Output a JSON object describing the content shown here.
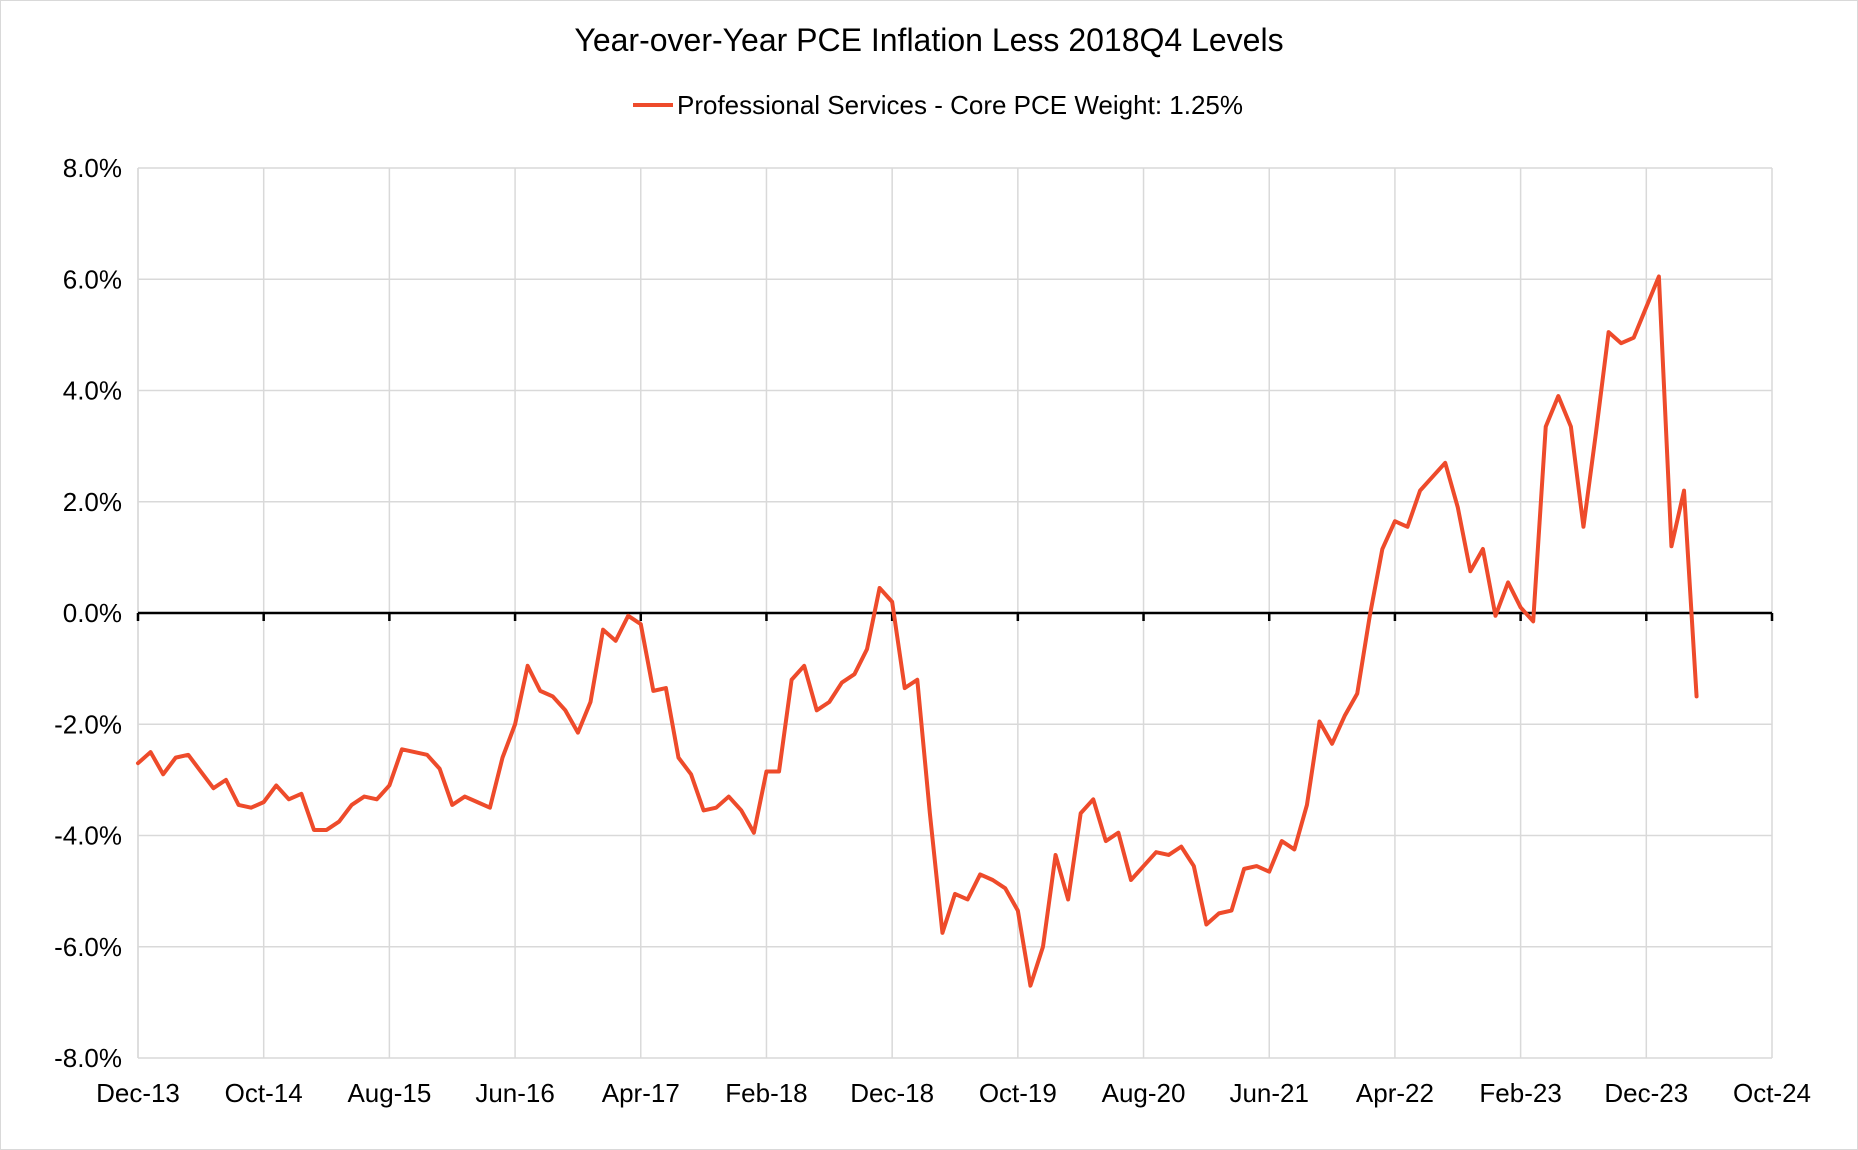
{
  "chart_data": {
    "type": "line",
    "title": "Year-over-Year PCE Inflation Less 2018Q4 Levels",
    "xlabel": "",
    "ylabel": "",
    "ylim": [
      -8,
      8
    ],
    "y_ticks": [
      8,
      6,
      4,
      2,
      0,
      -2,
      -4,
      -6,
      -8
    ],
    "y_tick_labels": [
      "8.0%",
      "6.0%",
      "4.0%",
      "2.0%",
      "0.0%",
      "-2.0%",
      "-4.0%",
      "-6.0%",
      "-8.0%"
    ],
    "x_start": "2013-12",
    "x_end": "2024-10",
    "x_tick_labels": [
      "Dec-13",
      "Oct-14",
      "Aug-15",
      "Jun-16",
      "Apr-17",
      "Feb-18",
      "Dec-18",
      "Oct-19",
      "Aug-20",
      "Jun-21",
      "Apr-22",
      "Feb-23",
      "Dec-23",
      "Oct-24"
    ],
    "grid": true,
    "zero_line": true,
    "legend": "top-center",
    "series": [
      {
        "name": "Professional Services - Core PCE Weight: 1.25%",
        "color": "#ee4b2b",
        "x_start": "2013-12",
        "values": [
          -2.7,
          -2.5,
          -2.9,
          -2.6,
          -2.55,
          -2.85,
          -3.15,
          -3.0,
          -3.45,
          -3.5,
          -3.4,
          -3.1,
          -3.35,
          -3.25,
          -3.9,
          -3.9,
          -3.75,
          -3.45,
          -3.3,
          -3.35,
          -3.1,
          -2.45,
          -2.5,
          -2.55,
          -2.8,
          -3.45,
          -3.3,
          -3.4,
          -3.5,
          -2.6,
          -2.0,
          -0.95,
          -1.4,
          -1.5,
          -1.75,
          -2.15,
          -1.6,
          -0.3,
          -0.5,
          -0.05,
          -0.2,
          -1.4,
          -1.35,
          -2.6,
          -2.9,
          -3.55,
          -3.5,
          -3.3,
          -3.55,
          -3.95,
          -2.85,
          -2.85,
          -1.2,
          -0.95,
          -1.75,
          -1.6,
          -1.25,
          -1.1,
          -0.65,
          0.45,
          0.2,
          -1.35,
          -1.2,
          -3.6,
          -5.75,
          -5.05,
          -5.15,
          -4.7,
          -4.8,
          -4.95,
          -5.35,
          -6.7,
          -6.0,
          -4.35,
          -5.15,
          -3.6,
          -3.35,
          -4.1,
          -3.95,
          -4.8,
          -4.55,
          -4.3,
          -4.35,
          -4.2,
          -4.55,
          -5.6,
          -5.4,
          -5.35,
          -4.6,
          -4.55,
          -4.65,
          -4.1,
          -4.25,
          -3.45,
          -1.95,
          -2.35,
          -1.85,
          -1.45,
          -0.05,
          1.15,
          1.65,
          1.55,
          2.2,
          2.45,
          2.7,
          1.9,
          0.75,
          1.15,
          -0.05,
          0.55,
          0.1,
          -0.15,
          3.35,
          3.9,
          3.35,
          1.55,
          3.25,
          5.05,
          4.85,
          4.95,
          5.5,
          6.05,
          1.2,
          2.2,
          -1.5
        ]
      }
    ]
  }
}
